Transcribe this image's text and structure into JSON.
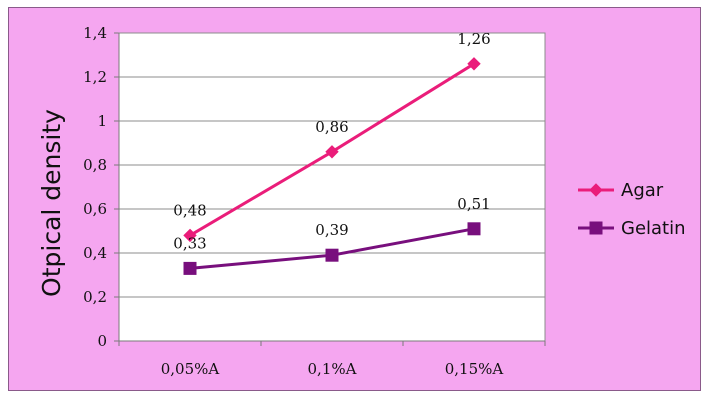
{
  "chart_data": {
    "type": "line",
    "title": "",
    "xlabel": "",
    "ylabel": "Otpical density",
    "categories": [
      "0,05%A",
      "0,1%A",
      "0,15%A"
    ],
    "ylim": [
      0,
      1.4
    ],
    "yticks": [
      0,
      0.2,
      0.4,
      0.6,
      0.8,
      1,
      1.2,
      1.4
    ],
    "ytick_labels": [
      "0",
      "0,2",
      "0,4",
      "0,6",
      "0,8",
      "1",
      "1,2",
      "1,4"
    ],
    "grid": true,
    "legend_position": "right",
    "series": [
      {
        "name": "Agar",
        "values": [
          0.48,
          0.86,
          1.26
        ],
        "labels": [
          "0,48",
          "0,86",
          "1,26"
        ],
        "color": "#ea1d7a",
        "marker": "diamond"
      },
      {
        "name": "Gelatin",
        "values": [
          0.33,
          0.39,
          0.51
        ],
        "labels": [
          "0,33",
          "0,39",
          "0,51"
        ],
        "color": "#780f7d",
        "marker": "square"
      }
    ]
  },
  "colors": {
    "frame_background": "#f5a6f0",
    "plot_background": "#ffffff",
    "gridline": "#8c8c8c",
    "axis": "#7a7a7a"
  }
}
